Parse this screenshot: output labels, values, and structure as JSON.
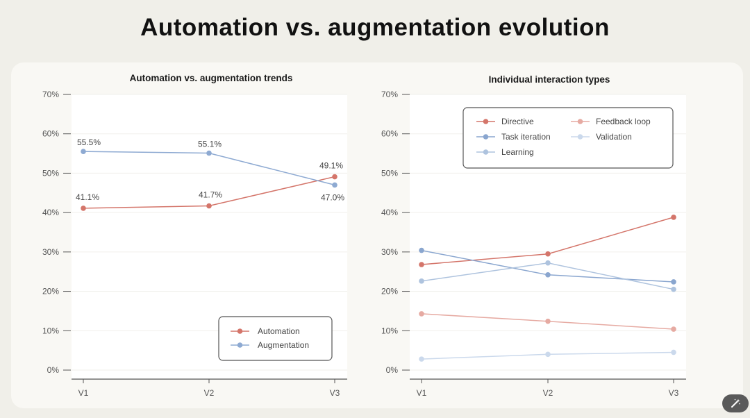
{
  "page": {
    "title": "Automation vs. augmentation evolution"
  },
  "colors": {
    "page_background": "#f0efe9",
    "card_background": "#f9f8f4",
    "plot_background": "#ffffff",
    "automation": "#d4756a",
    "augmentation": "#8eaad2",
    "directive": "#d4756a",
    "task_iteration": "#8aa6cf",
    "learning": "#aec3de",
    "feedback_loop": "#e6aaa2",
    "validation": "#cbd9ec"
  },
  "toolbar": {
    "magic_icon": "wand-sparkle-icon"
  },
  "chart_data": [
    {
      "type": "line",
      "title": "Automation vs. augmentation trends",
      "categories": [
        "V1",
        "V2",
        "V3"
      ],
      "ylim": [
        0,
        70
      ],
      "yticks": [
        0,
        10,
        20,
        30,
        40,
        50,
        60,
        70
      ],
      "ytick_labels": [
        "0%",
        "10%",
        "20%",
        "30%",
        "40%",
        "50%",
        "60%",
        "70%"
      ],
      "grid": true,
      "legend_position": "bottom-right",
      "series": [
        {
          "name": "Automation",
          "color": "#d4756a",
          "values": [
            41.1,
            41.7,
            49.1
          ],
          "labels": [
            "41.1%",
            "41.7%",
            "49.1%"
          ]
        },
        {
          "name": "Augmentation",
          "color": "#8eaad2",
          "values": [
            55.5,
            55.1,
            47.0
          ],
          "labels": [
            "55.5%",
            "55.1%",
            "47.0%"
          ]
        }
      ]
    },
    {
      "type": "line",
      "title": "Individual interaction types",
      "categories": [
        "V1",
        "V2",
        "V3"
      ],
      "ylim": [
        0,
        70
      ],
      "yticks": [
        0,
        10,
        20,
        30,
        40,
        50,
        60,
        70
      ],
      "ytick_labels": [
        "0%",
        "10%",
        "20%",
        "30%",
        "40%",
        "50%",
        "60%",
        "70%"
      ],
      "grid": true,
      "legend_position": "top",
      "series": [
        {
          "name": "Directive",
          "color": "#d4756a",
          "values": [
            26.8,
            29.5,
            38.8
          ]
        },
        {
          "name": "Feedback loop",
          "color": "#e6aaa2",
          "values": [
            14.3,
            12.4,
            10.4
          ]
        },
        {
          "name": "Task iteration",
          "color": "#8aa6cf",
          "values": [
            30.4,
            24.2,
            22.4
          ]
        },
        {
          "name": "Validation",
          "color": "#cbd9ec",
          "values": [
            2.8,
            4.0,
            4.5
          ]
        },
        {
          "name": "Learning",
          "color": "#aec3de",
          "values": [
            22.6,
            27.2,
            20.5
          ]
        }
      ]
    }
  ]
}
